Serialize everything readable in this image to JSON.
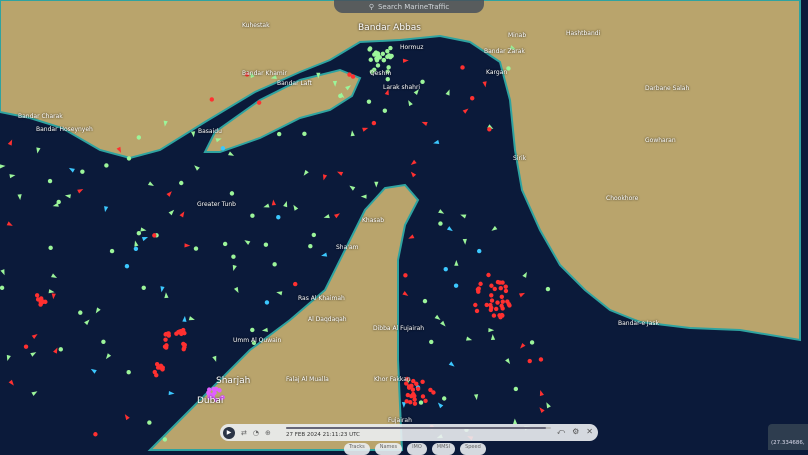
{
  "search": {
    "placeholder": "Search MarineTraffic",
    "icon": "search-icon"
  },
  "places": {
    "bandar_abbas": "Bandar Abbas",
    "hormuz": "Hormuz",
    "qeshm": "Qeshm",
    "larak": "Larak shahri",
    "bandar_khamir": "Bandar Khamir",
    "bandar_laft": "Bandar Laft",
    "bandar_charak": "Bandar Charak",
    "bandar_hoseynyeh": "Bandar Hoseynyeh",
    "basaidu": "Basaidu",
    "kuhestak": "Kuhestak",
    "hashtbandi": "Hashtbandi",
    "kargan": "Kargan",
    "darbane_salah": "Darbane Salah",
    "gowharan": "Gowharan",
    "sirik": "Sirik",
    "chookhore": "Chookhore",
    "bandar_jask": "Bandar-e Jask",
    "greater_tunb": "Greater Tunb",
    "khasab": "Khasab",
    "shaam": "Sha'am",
    "ras_al_khaimah": "Ras Al Khaimah",
    "al_daqdaqah": "Al Daqdaqah",
    "umm_al_quwain": "Umm Al Quwain",
    "dibba": "Dibba Al Fujairah",
    "sharjah": "Sharjah",
    "dubai": "Dubai",
    "falaj": "Falaj Al Mualla",
    "khor_fakkan": "Khor Fakkan",
    "fujairah": "Fujairah",
    "minab": "Minab",
    "bandar_zarak": "Bandar Zarak"
  },
  "player": {
    "time": "27 FEB 2024 21:11:23 UTC",
    "progress": 0.98
  },
  "chips": [
    "Tracks",
    "Names",
    "IMO",
    "MMSI",
    "Speed"
  ],
  "coordinates": "(27.334686,",
  "colors": {
    "sea": "#0b1a3a",
    "land": "#b9a46c",
    "cargo": "#9cf59a",
    "tanker": "#ff3030",
    "passenger": "#3cc8ff",
    "other": "#e060ff"
  }
}
